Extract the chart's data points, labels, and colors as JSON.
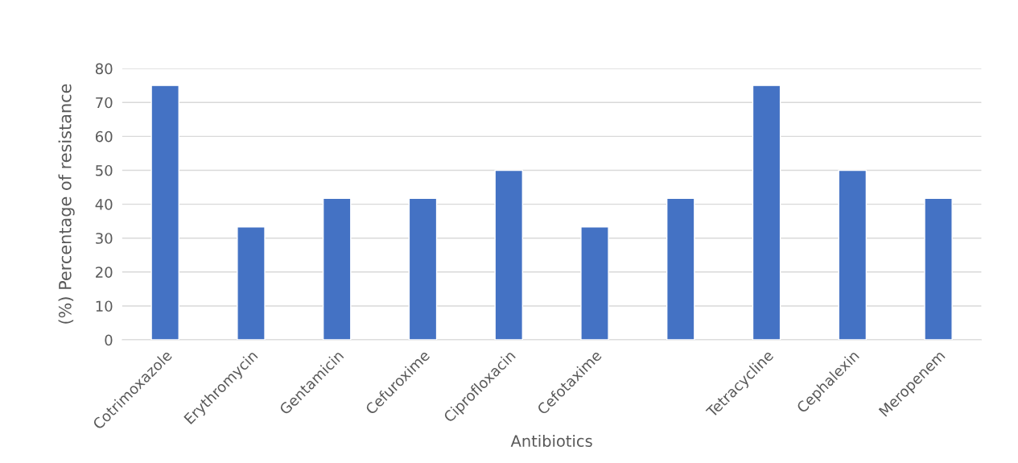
{
  "chart_data": {
    "type": "bar",
    "categories": [
      "Cotrimoxazole",
      "Erythromycin",
      "Gentamicin",
      "Cefuroxime",
      "Ciprofloxacin",
      "Cefotaxime",
      null,
      "Tetracycline",
      "Cephalexin",
      "Meropenem"
    ],
    "values": [
      75,
      33.3,
      41.7,
      41.7,
      50,
      33.3,
      41.7,
      75,
      50,
      41.7
    ],
    "color": "#4472c4",
    "xlabel": "Antibiotics",
    "ylabel": "(%) Percentage of resistance",
    "ylim": [
      0,
      80
    ],
    "yticks": [
      0,
      10,
      20,
      30,
      40,
      50,
      60,
      70,
      80
    ],
    "grid": "y"
  }
}
